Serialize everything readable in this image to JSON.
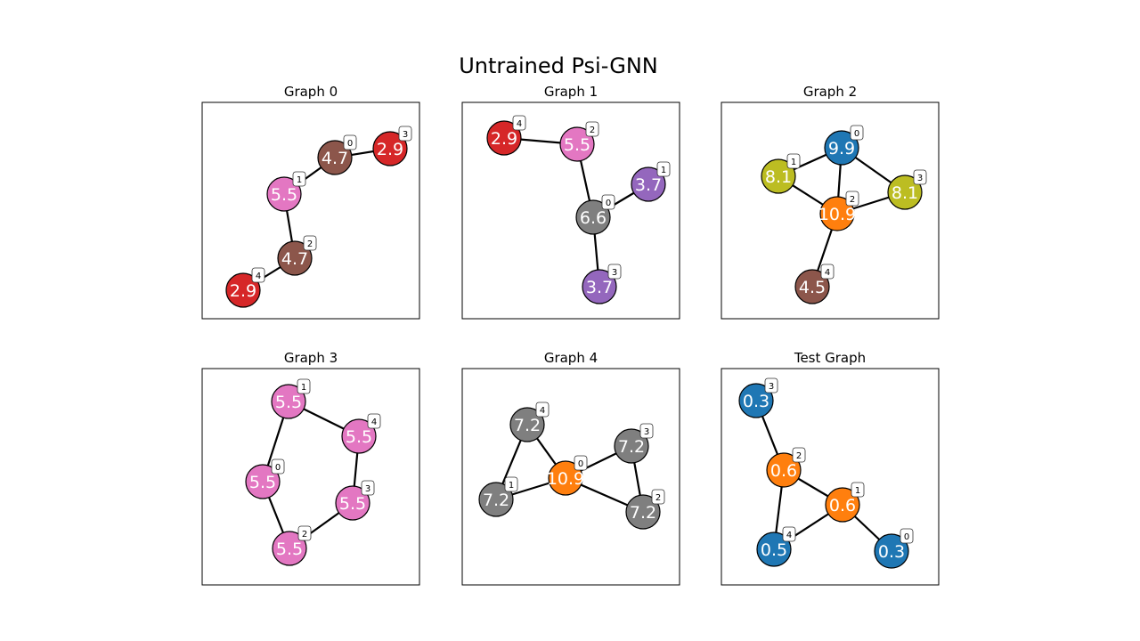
{
  "figure": {
    "title": "Untrained Psi-GNN"
  },
  "panels": [
    {
      "title": "Graph 0",
      "nodes": [
        {
          "id": "0",
          "value": "4.7",
          "color": "#8c564b"
        },
        {
          "id": "1",
          "value": "5.5",
          "color": "#e377c2"
        },
        {
          "id": "2",
          "value": "4.7",
          "color": "#8c564b"
        },
        {
          "id": "3",
          "value": "2.9",
          "color": "#d62728"
        },
        {
          "id": "4",
          "value": "2.9",
          "color": "#d62728"
        }
      ],
      "edges": [
        [
          "0",
          "3"
        ],
        [
          "0",
          "1"
        ],
        [
          "1",
          "2"
        ],
        [
          "2",
          "4"
        ]
      ]
    },
    {
      "title": "Graph 1",
      "nodes": [
        {
          "id": "0",
          "value": "6.6",
          "color": "#7f7f7f"
        },
        {
          "id": "1",
          "value": "3.7",
          "color": "#9467bd"
        },
        {
          "id": "2",
          "value": "5.5",
          "color": "#e377c2"
        },
        {
          "id": "3",
          "value": "3.7",
          "color": "#9467bd"
        },
        {
          "id": "4",
          "value": "2.9",
          "color": "#d62728"
        }
      ],
      "edges": [
        [
          "4",
          "2"
        ],
        [
          "2",
          "0"
        ],
        [
          "0",
          "1"
        ],
        [
          "0",
          "3"
        ]
      ]
    },
    {
      "title": "Graph 2",
      "nodes": [
        {
          "id": "0",
          "value": "9.9",
          "color": "#1f77b4"
        },
        {
          "id": "1",
          "value": "8.1",
          "color": "#bcbd22"
        },
        {
          "id": "2",
          "value": "10.9",
          "color": "#ff7f0e"
        },
        {
          "id": "3",
          "value": "8.1",
          "color": "#bcbd22"
        },
        {
          "id": "4",
          "value": "4.5",
          "color": "#8c564b"
        }
      ],
      "edges": [
        [
          "0",
          "1"
        ],
        [
          "0",
          "2"
        ],
        [
          "0",
          "3"
        ],
        [
          "1",
          "2"
        ],
        [
          "2",
          "3"
        ],
        [
          "2",
          "4"
        ]
      ]
    },
    {
      "title": "Graph 3",
      "nodes": [
        {
          "id": "0",
          "value": "5.5",
          "color": "#e377c2"
        },
        {
          "id": "1",
          "value": "5.5",
          "color": "#e377c2"
        },
        {
          "id": "2",
          "value": "5.5",
          "color": "#e377c2"
        },
        {
          "id": "3",
          "value": "5.5",
          "color": "#e377c2"
        },
        {
          "id": "4",
          "value": "5.5",
          "color": "#e377c2"
        }
      ],
      "edges": [
        [
          "1",
          "4"
        ],
        [
          "4",
          "3"
        ],
        [
          "3",
          "2"
        ],
        [
          "2",
          "0"
        ],
        [
          "0",
          "1"
        ]
      ]
    },
    {
      "title": "Graph 4",
      "nodes": [
        {
          "id": "0",
          "value": "10.9",
          "color": "#ff7f0e"
        },
        {
          "id": "1",
          "value": "7.2",
          "color": "#7f7f7f"
        },
        {
          "id": "2",
          "value": "7.2",
          "color": "#7f7f7f"
        },
        {
          "id": "3",
          "value": "7.2",
          "color": "#7f7f7f"
        },
        {
          "id": "4",
          "value": "7.2",
          "color": "#7f7f7f"
        }
      ],
      "edges": [
        [
          "4",
          "0"
        ],
        [
          "4",
          "1"
        ],
        [
          "1",
          "0"
        ],
        [
          "0",
          "3"
        ],
        [
          "0",
          "2"
        ],
        [
          "3",
          "2"
        ]
      ]
    },
    {
      "title": "Test Graph",
      "nodes": [
        {
          "id": "0",
          "value": "0.3",
          "color": "#1f77b4"
        },
        {
          "id": "1",
          "value": "0.6",
          "color": "#ff7f0e"
        },
        {
          "id": "2",
          "value": "0.6",
          "color": "#ff7f0e"
        },
        {
          "id": "3",
          "value": "0.3",
          "color": "#1f77b4"
        },
        {
          "id": "4",
          "value": "0.5",
          "color": "#1f77b4"
        }
      ],
      "edges": [
        [
          "3",
          "2"
        ],
        [
          "2",
          "1"
        ],
        [
          "2",
          "4"
        ],
        [
          "4",
          "1"
        ],
        [
          "1",
          "0"
        ]
      ]
    }
  ]
}
